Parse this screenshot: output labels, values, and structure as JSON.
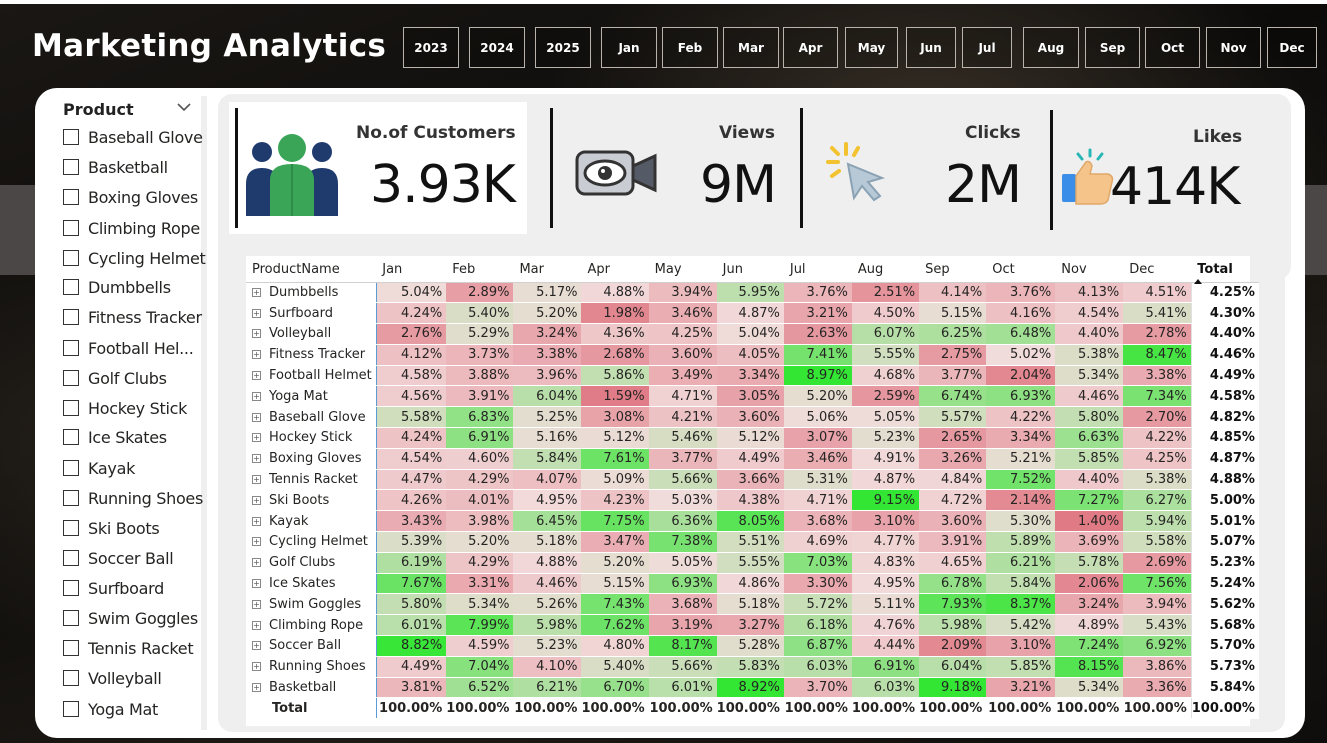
{
  "header": {
    "title": "Marketing Analytics",
    "years": [
      "2023",
      "2024",
      "2025"
    ],
    "months": [
      "Jan",
      "Feb",
      "Mar",
      "Apr",
      "May",
      "Jun",
      "Jul",
      "Aug",
      "Sep",
      "Oct",
      "Nov",
      "Dec"
    ]
  },
  "slicer": {
    "title": "Product",
    "items": [
      "Baseball Glove",
      "Basketball",
      "Boxing Gloves",
      "Climbing Rope",
      "Cycling Helmet",
      "Dumbbells",
      "Fitness Tracker",
      "Football Hel...",
      "Golf Clubs",
      "Hockey Stick",
      "Ice Skates",
      "Kayak",
      "Running Shoes",
      "Ski Boots",
      "Soccer Ball",
      "Surfboard",
      "Swim Goggles",
      "Tennis Racket",
      "Volleyball",
      "Yoga Mat"
    ]
  },
  "kpis": {
    "customers": {
      "label": "No.of Customers",
      "value": "3.93K",
      "icon": "people-icon"
    },
    "views": {
      "label": "Views",
      "value": "9M",
      "icon": "camera-eye-icon"
    },
    "clicks": {
      "label": "Clicks",
      "value": "2M",
      "icon": "cursor-click-icon"
    },
    "likes": {
      "label": "Likes",
      "value": "414K",
      "icon": "thumbs-up-icon"
    }
  },
  "colors": {
    "high": "#33e633",
    "mid": "#f2dcdc",
    "low": "#e07a85"
  },
  "table": {
    "columns": [
      "ProductName",
      "Jan",
      "Feb",
      "Mar",
      "Apr",
      "May",
      "Jun",
      "Jul",
      "Aug",
      "Sep",
      "Oct",
      "Nov",
      "Dec",
      "Total"
    ],
    "rows": [
      {
        "name": "Dumbbells",
        "values": [
          "5.04%",
          "2.89%",
          "5.17%",
          "4.88%",
          "3.94%",
          "5.95%",
          "3.76%",
          "2.51%",
          "4.14%",
          "3.76%",
          "4.13%",
          "4.51%"
        ],
        "total": "4.25%"
      },
      {
        "name": "Surfboard",
        "values": [
          "4.24%",
          "5.40%",
          "5.20%",
          "1.98%",
          "3.46%",
          "4.87%",
          "3.21%",
          "4.50%",
          "5.15%",
          "4.16%",
          "4.54%",
          "5.41%"
        ],
        "total": "4.30%"
      },
      {
        "name": "Volleyball",
        "values": [
          "2.76%",
          "5.29%",
          "3.24%",
          "4.36%",
          "4.25%",
          "5.04%",
          "2.63%",
          "6.07%",
          "6.25%",
          "6.48%",
          "4.40%",
          "2.78%"
        ],
        "total": "4.40%"
      },
      {
        "name": "Fitness Tracker",
        "values": [
          "4.12%",
          "3.73%",
          "3.38%",
          "2.68%",
          "3.60%",
          "4.05%",
          "7.41%",
          "5.55%",
          "2.75%",
          "5.02%",
          "5.38%",
          "8.47%"
        ],
        "total": "4.46%"
      },
      {
        "name": "Football Helmet",
        "values": [
          "4.58%",
          "3.88%",
          "3.96%",
          "5.86%",
          "3.49%",
          "3.34%",
          "8.97%",
          "4.68%",
          "3.77%",
          "2.04%",
          "5.34%",
          "3.38%"
        ],
        "total": "4.49%"
      },
      {
        "name": "Yoga Mat",
        "values": [
          "4.56%",
          "3.91%",
          "6.04%",
          "1.59%",
          "4.71%",
          "3.05%",
          "5.20%",
          "2.59%",
          "6.74%",
          "6.93%",
          "4.46%",
          "7.34%"
        ],
        "total": "4.58%"
      },
      {
        "name": "Baseball Glove",
        "values": [
          "5.58%",
          "6.83%",
          "5.25%",
          "3.08%",
          "4.21%",
          "3.60%",
          "5.06%",
          "5.05%",
          "5.57%",
          "4.22%",
          "5.80%",
          "2.70%"
        ],
        "total": "4.82%"
      },
      {
        "name": "Hockey Stick",
        "values": [
          "4.24%",
          "6.91%",
          "5.16%",
          "5.12%",
          "5.46%",
          "5.12%",
          "3.07%",
          "5.23%",
          "2.65%",
          "3.34%",
          "6.63%",
          "4.22%"
        ],
        "total": "4.85%"
      },
      {
        "name": "Boxing Gloves",
        "values": [
          "4.54%",
          "4.60%",
          "5.84%",
          "7.61%",
          "3.77%",
          "4.49%",
          "3.46%",
          "4.91%",
          "3.26%",
          "5.21%",
          "5.85%",
          "4.25%"
        ],
        "total": "4.87%"
      },
      {
        "name": "Tennis Racket",
        "values": [
          "4.47%",
          "4.29%",
          "4.07%",
          "5.09%",
          "5.66%",
          "3.66%",
          "5.31%",
          "4.87%",
          "4.84%",
          "7.52%",
          "4.40%",
          "5.38%"
        ],
        "total": "4.88%"
      },
      {
        "name": "Ski Boots",
        "values": [
          "4.26%",
          "4.01%",
          "4.95%",
          "4.23%",
          "5.03%",
          "4.38%",
          "4.71%",
          "9.15%",
          "4.72%",
          "2.14%",
          "7.27%",
          "6.27%"
        ],
        "total": "5.00%"
      },
      {
        "name": "Kayak",
        "values": [
          "3.43%",
          "3.98%",
          "6.45%",
          "7.75%",
          "6.36%",
          "8.05%",
          "3.68%",
          "3.10%",
          "3.60%",
          "5.30%",
          "1.40%",
          "5.94%"
        ],
        "total": "5.01%"
      },
      {
        "name": "Cycling Helmet",
        "values": [
          "5.39%",
          "5.20%",
          "5.18%",
          "3.47%",
          "7.38%",
          "5.51%",
          "4.69%",
          "4.77%",
          "3.91%",
          "5.89%",
          "3.69%",
          "5.58%"
        ],
        "total": "5.07%"
      },
      {
        "name": "Golf Clubs",
        "values": [
          "6.19%",
          "4.29%",
          "4.88%",
          "5.20%",
          "5.05%",
          "5.55%",
          "7.03%",
          "4.83%",
          "4.65%",
          "6.21%",
          "5.78%",
          "2.69%"
        ],
        "total": "5.23%"
      },
      {
        "name": "Ice Skates",
        "values": [
          "7.67%",
          "3.31%",
          "4.46%",
          "5.15%",
          "6.93%",
          "4.86%",
          "3.30%",
          "4.95%",
          "6.78%",
          "5.84%",
          "2.06%",
          "7.56%"
        ],
        "total": "5.24%"
      },
      {
        "name": "Swim Goggles",
        "values": [
          "5.80%",
          "5.34%",
          "5.26%",
          "7.43%",
          "3.68%",
          "5.18%",
          "5.72%",
          "5.11%",
          "7.93%",
          "8.37%",
          "3.24%",
          "3.94%"
        ],
        "total": "5.62%"
      },
      {
        "name": "Climbing Rope",
        "values": [
          "6.01%",
          "7.99%",
          "5.98%",
          "7.62%",
          "3.19%",
          "3.27%",
          "6.18%",
          "4.76%",
          "5.98%",
          "5.42%",
          "4.89%",
          "5.43%"
        ],
        "total": "5.68%"
      },
      {
        "name": "Soccer Ball",
        "values": [
          "8.82%",
          "4.59%",
          "5.23%",
          "4.80%",
          "8.17%",
          "5.28%",
          "6.87%",
          "4.44%",
          "2.09%",
          "3.10%",
          "7.24%",
          "6.92%"
        ],
        "total": "5.70%"
      },
      {
        "name": "Running Shoes",
        "values": [
          "4.49%",
          "7.04%",
          "4.10%",
          "5.40%",
          "5.66%",
          "5.83%",
          "6.03%",
          "6.91%",
          "6.04%",
          "5.85%",
          "8.15%",
          "3.86%"
        ],
        "total": "5.73%"
      },
      {
        "name": "Basketball",
        "values": [
          "3.81%",
          "6.52%",
          "6.21%",
          "6.70%",
          "6.01%",
          "8.92%",
          "3.70%",
          "6.03%",
          "9.18%",
          "3.21%",
          "5.34%",
          "3.36%"
        ],
        "total": "5.84%"
      }
    ],
    "total_row": {
      "label": "Total",
      "values": [
        "100.00%",
        "100.00%",
        "100.00%",
        "100.00%",
        "100.00%",
        "100.00%",
        "100.00%",
        "100.00%",
        "100.00%",
        "100.00%",
        "100.00%",
        "100.00%"
      ],
      "total": "100.00%"
    }
  }
}
